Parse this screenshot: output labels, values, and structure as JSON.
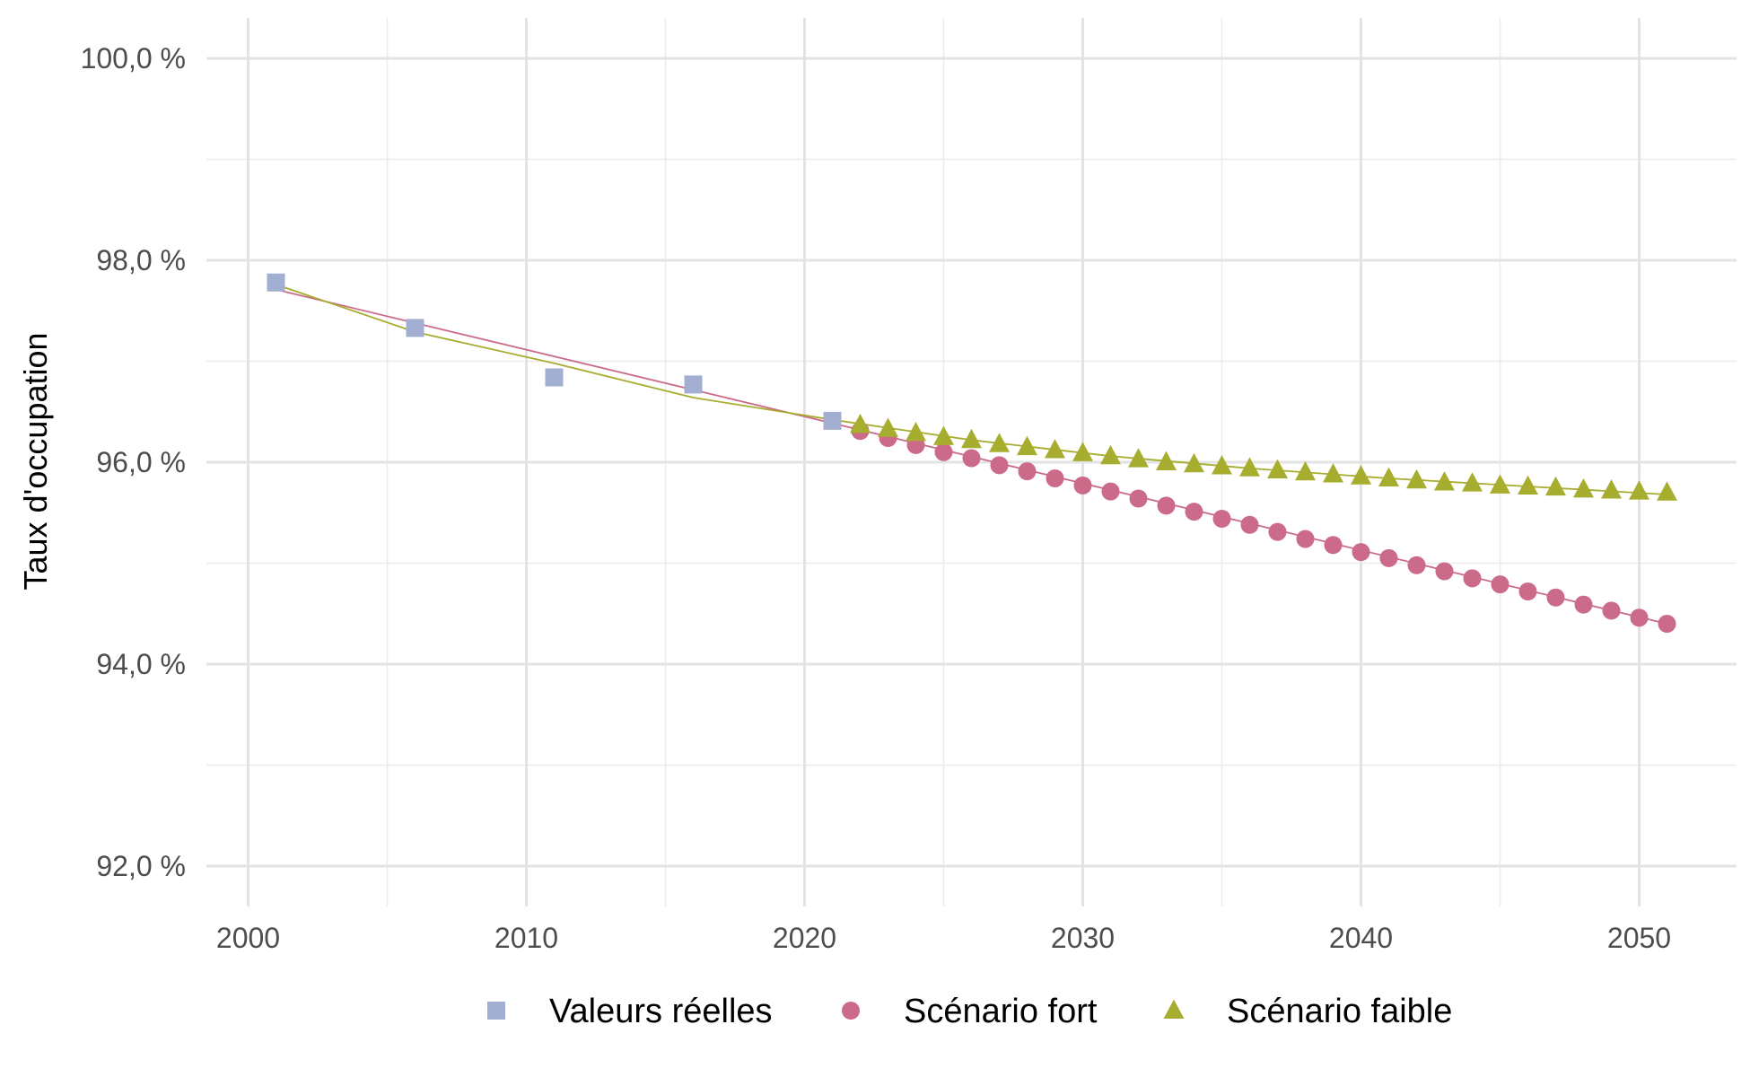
{
  "chart_data": {
    "type": "line",
    "title": "",
    "xlabel": "",
    "ylabel": "Taux d'occupation",
    "xlim": [
      1998.5,
      2053.5
    ],
    "ylim": [
      91.6,
      100.4
    ],
    "x_ticks": [
      2000,
      2010,
      2020,
      2030,
      2040,
      2050
    ],
    "x_tick_labels": [
      "2000",
      "2010",
      "2020",
      "2030",
      "2040",
      "2050"
    ],
    "y_ticks": [
      92,
      94,
      96,
      98,
      100
    ],
    "y_tick_labels": [
      "92,0 %",
      "94,0 %",
      "96,0 %",
      "98,0 %",
      "100,0 %"
    ],
    "grid": true,
    "legend_position": "bottom",
    "series": [
      {
        "name": "Valeurs réelles",
        "marker": "square",
        "color": "#a3aed3",
        "x": [
          2001,
          2006,
          2011,
          2016,
          2021
        ],
        "y": [
          97.78,
          97.33,
          96.84,
          96.77,
          96.41
        ]
      },
      {
        "name": "Scénario fort",
        "marker": "circle",
        "color": "#cc6a8a",
        "x": [
          2022,
          2023,
          2024,
          2025,
          2026,
          2027,
          2028,
          2029,
          2030,
          2031,
          2032,
          2033,
          2034,
          2035,
          2036,
          2037,
          2038,
          2039,
          2040,
          2041,
          2042,
          2043,
          2044,
          2045,
          2046,
          2047,
          2048,
          2049,
          2050,
          2051
        ],
        "y": [
          96.31,
          96.24,
          96.17,
          96.1,
          96.04,
          95.97,
          95.91,
          95.84,
          95.77,
          95.71,
          95.64,
          95.57,
          95.51,
          95.44,
          95.38,
          95.31,
          95.24,
          95.18,
          95.11,
          95.05,
          94.98,
          94.92,
          94.85,
          94.79,
          94.72,
          94.66,
          94.59,
          94.53,
          94.46,
          94.4
        ]
      },
      {
        "name": "Scénario faible",
        "marker": "triangle",
        "color": "#a7ad2e",
        "x": [
          2022,
          2023,
          2024,
          2025,
          2026,
          2027,
          2028,
          2029,
          2030,
          2031,
          2032,
          2033,
          2034,
          2035,
          2036,
          2037,
          2038,
          2039,
          2040,
          2041,
          2042,
          2043,
          2044,
          2045,
          2046,
          2047,
          2048,
          2049,
          2050,
          2051
        ],
        "y": [
          96.37,
          96.33,
          96.29,
          96.25,
          96.22,
          96.18,
          96.15,
          96.12,
          96.09,
          96.06,
          96.03,
          96.0,
          95.98,
          95.96,
          95.94,
          95.92,
          95.9,
          95.88,
          95.86,
          95.84,
          95.82,
          95.8,
          95.79,
          95.77,
          95.76,
          95.75,
          95.73,
          95.72,
          95.71,
          95.7
        ]
      }
    ],
    "trend_lines": [
      {
        "color": "#cc6a8a",
        "x": [
          2001,
          2051
        ],
        "y": [
          97.71,
          94.4
        ]
      },
      {
        "color": "#a7ad2e",
        "x": [
          2001,
          2006,
          2011,
          2016,
          2021,
          2026,
          2031,
          2036,
          2041,
          2046,
          2051
        ],
        "y": [
          97.76,
          97.29,
          96.98,
          96.64,
          96.42,
          96.22,
          96.06,
          95.94,
          95.84,
          95.76,
          95.68
        ]
      }
    ]
  }
}
